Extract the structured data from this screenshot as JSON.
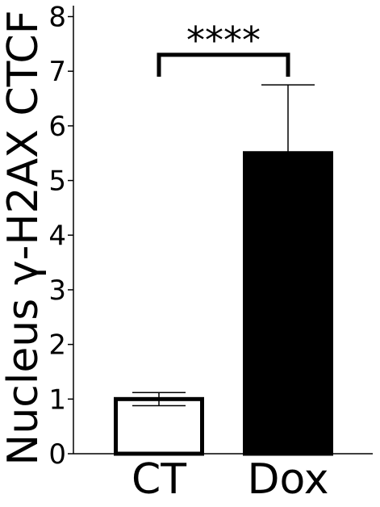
{
  "chart_data": {
    "type": "bar",
    "categories": [
      "CT",
      "Dox"
    ],
    "series": [
      {
        "values": [
          1.0,
          5.5
        ],
        "errors": [
          0.12,
          1.25
        ],
        "fill_colors": [
          "#ffffff",
          "#000000"
        ],
        "edge_color": "#000000"
      }
    ],
    "ylabel": "Nucleus γ-H2AX CTCF",
    "xlabel": "",
    "ylim": [
      0,
      8.2
    ],
    "yticks": [
      "0",
      "1",
      "2",
      "3",
      "4",
      "5",
      "6",
      "7",
      "8"
    ],
    "grid": false,
    "annotations": [
      {
        "type": "significance-bracket",
        "from": "CT",
        "to": "Dox",
        "y": 7.3,
        "text": "****"
      }
    ]
  }
}
